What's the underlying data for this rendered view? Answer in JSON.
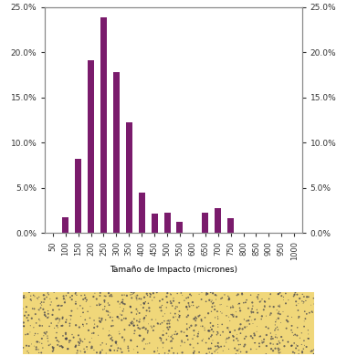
{
  "chart_data": {
    "type": "bar",
    "x_label": "Tamaño de Impacto (micrones)",
    "categories": [
      "50",
      "100",
      "150",
      "200",
      "250",
      "300",
      "350",
      "400",
      "450",
      "500",
      "550",
      "600",
      "650",
      "700",
      "750",
      "800",
      "850",
      "900",
      "950",
      "1000"
    ],
    "values": [
      0,
      1.8,
      8.2,
      19.1,
      23.9,
      17.8,
      12.3,
      4.5,
      2.2,
      2.3,
      1.3,
      0,
      2.3,
      2.8,
      1.7,
      0,
      0,
      0,
      0,
      0
    ],
    "color": "#7a1b6c",
    "ylim": [
      0,
      25
    ],
    "yticks": [
      {
        "value": 0,
        "label": "0.0%"
      },
      {
        "value": 5,
        "label": "5.0%"
      },
      {
        "value": 10,
        "label": "10.0%"
      },
      {
        "value": 15,
        "label": "15.0%"
      },
      {
        "value": 20,
        "label": "20.0%"
      },
      {
        "value": 25,
        "label": "25.0%"
      }
    ],
    "y2lim": [
      0,
      25
    ],
    "y2ticks": [
      {
        "value": 0,
        "label": "0.0%"
      },
      {
        "value": 5,
        "label": "5.0%"
      },
      {
        "value": 10,
        "label": "10.0%"
      },
      {
        "value": 15,
        "label": "15.0%"
      },
      {
        "value": 20,
        "label": "20.0%"
      },
      {
        "value": 25,
        "label": "25.0%"
      }
    ],
    "grid": false
  }
}
